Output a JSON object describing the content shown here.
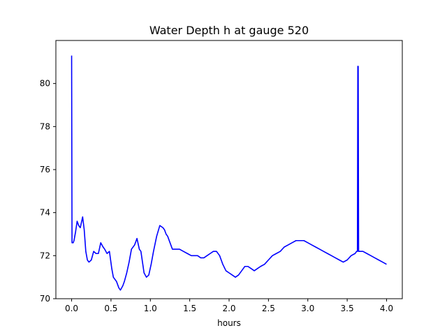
{
  "chart_data": {
    "type": "line",
    "title": "Water Depth h at gauge 520",
    "xlabel": "hours",
    "ylabel": "",
    "xlim": [
      -0.2,
      4.2
    ],
    "ylim": [
      70.0,
      82.0
    ],
    "x_ticks": [
      0.0,
      0.5,
      1.0,
      1.5,
      2.0,
      2.5,
      3.0,
      3.5,
      4.0
    ],
    "x_tick_labels": [
      "0.0",
      "0.5",
      "1.0",
      "1.5",
      "2.0",
      "2.5",
      "3.0",
      "3.5",
      "4.0"
    ],
    "y_ticks": [
      70,
      72,
      74,
      76,
      78,
      80
    ],
    "y_tick_labels": [
      "70",
      "72",
      "74",
      "76",
      "78",
      "80"
    ],
    "grid": false,
    "legend": "none",
    "series": [
      {
        "color": "#0000ff",
        "x": [
          0.0,
          0.005,
          0.01,
          0.02,
          0.03,
          0.05,
          0.07,
          0.09,
          0.11,
          0.14,
          0.16,
          0.18,
          0.2,
          0.22,
          0.25,
          0.28,
          0.31,
          0.34,
          0.37,
          0.4,
          0.42,
          0.45,
          0.48,
          0.51,
          0.53,
          0.55,
          0.57,
          0.6,
          0.62,
          0.65,
          0.67,
          0.7,
          0.73,
          0.76,
          0.8,
          0.83,
          0.86,
          0.88,
          0.9,
          0.92,
          0.95,
          0.98,
          1.01,
          1.04,
          1.08,
          1.12,
          1.16,
          1.18,
          1.2,
          1.22,
          1.25,
          1.28,
          1.3,
          1.33,
          1.37,
          1.42,
          1.47,
          1.52,
          1.56,
          1.6,
          1.64,
          1.68,
          1.72,
          1.76,
          1.8,
          1.84,
          1.88,
          1.92,
          1.96,
          2.0,
          2.04,
          2.08,
          2.12,
          2.16,
          2.2,
          2.24,
          2.28,
          2.32,
          2.36,
          2.4,
          2.45,
          2.5,
          2.55,
          2.6,
          2.65,
          2.7,
          2.75,
          2.8,
          2.85,
          2.9,
          2.95,
          3.0,
          3.05,
          3.1,
          3.15,
          3.2,
          3.25,
          3.3,
          3.35,
          3.4,
          3.45,
          3.5,
          3.55,
          3.6,
          3.62,
          3.63,
          3.635,
          3.64,
          3.645,
          3.65,
          3.66,
          3.7,
          3.75,
          3.8,
          3.85,
          3.9,
          3.95,
          4.0
        ],
        "y": [
          81.3,
          72.6,
          72.6,
          72.6,
          72.7,
          73.1,
          73.6,
          73.4,
          73.3,
          73.8,
          73.2,
          72.2,
          71.8,
          71.7,
          71.8,
          72.2,
          72.1,
          72.1,
          72.6,
          72.4,
          72.3,
          72.1,
          72.2,
          71.4,
          71.0,
          70.9,
          70.8,
          70.5,
          70.4,
          70.6,
          70.8,
          71.2,
          71.7,
          72.3,
          72.5,
          72.8,
          72.3,
          72.2,
          71.7,
          71.2,
          71.0,
          71.1,
          71.6,
          72.2,
          72.9,
          73.4,
          73.3,
          73.2,
          73.0,
          72.9,
          72.6,
          72.3,
          72.3,
          72.3,
          72.3,
          72.2,
          72.1,
          72.0,
          72.0,
          72.0,
          71.9,
          71.9,
          72.0,
          72.1,
          72.2,
          72.2,
          72.0,
          71.6,
          71.3,
          71.2,
          71.1,
          71.0,
          71.1,
          71.3,
          71.5,
          71.5,
          71.4,
          71.3,
          71.4,
          71.5,
          71.6,
          71.8,
          72.0,
          72.1,
          72.2,
          72.4,
          72.5,
          72.6,
          72.7,
          72.7,
          72.7,
          72.6,
          72.5,
          72.4,
          72.3,
          72.2,
          72.1,
          72.0,
          71.9,
          71.8,
          71.7,
          71.8,
          72.0,
          72.1,
          72.2,
          72.2,
          80.8,
          80.8,
          72.2,
          72.2,
          72.2,
          72.2,
          72.1,
          72.0,
          71.9,
          71.8,
          71.7,
          71.6
        ]
      }
    ]
  }
}
